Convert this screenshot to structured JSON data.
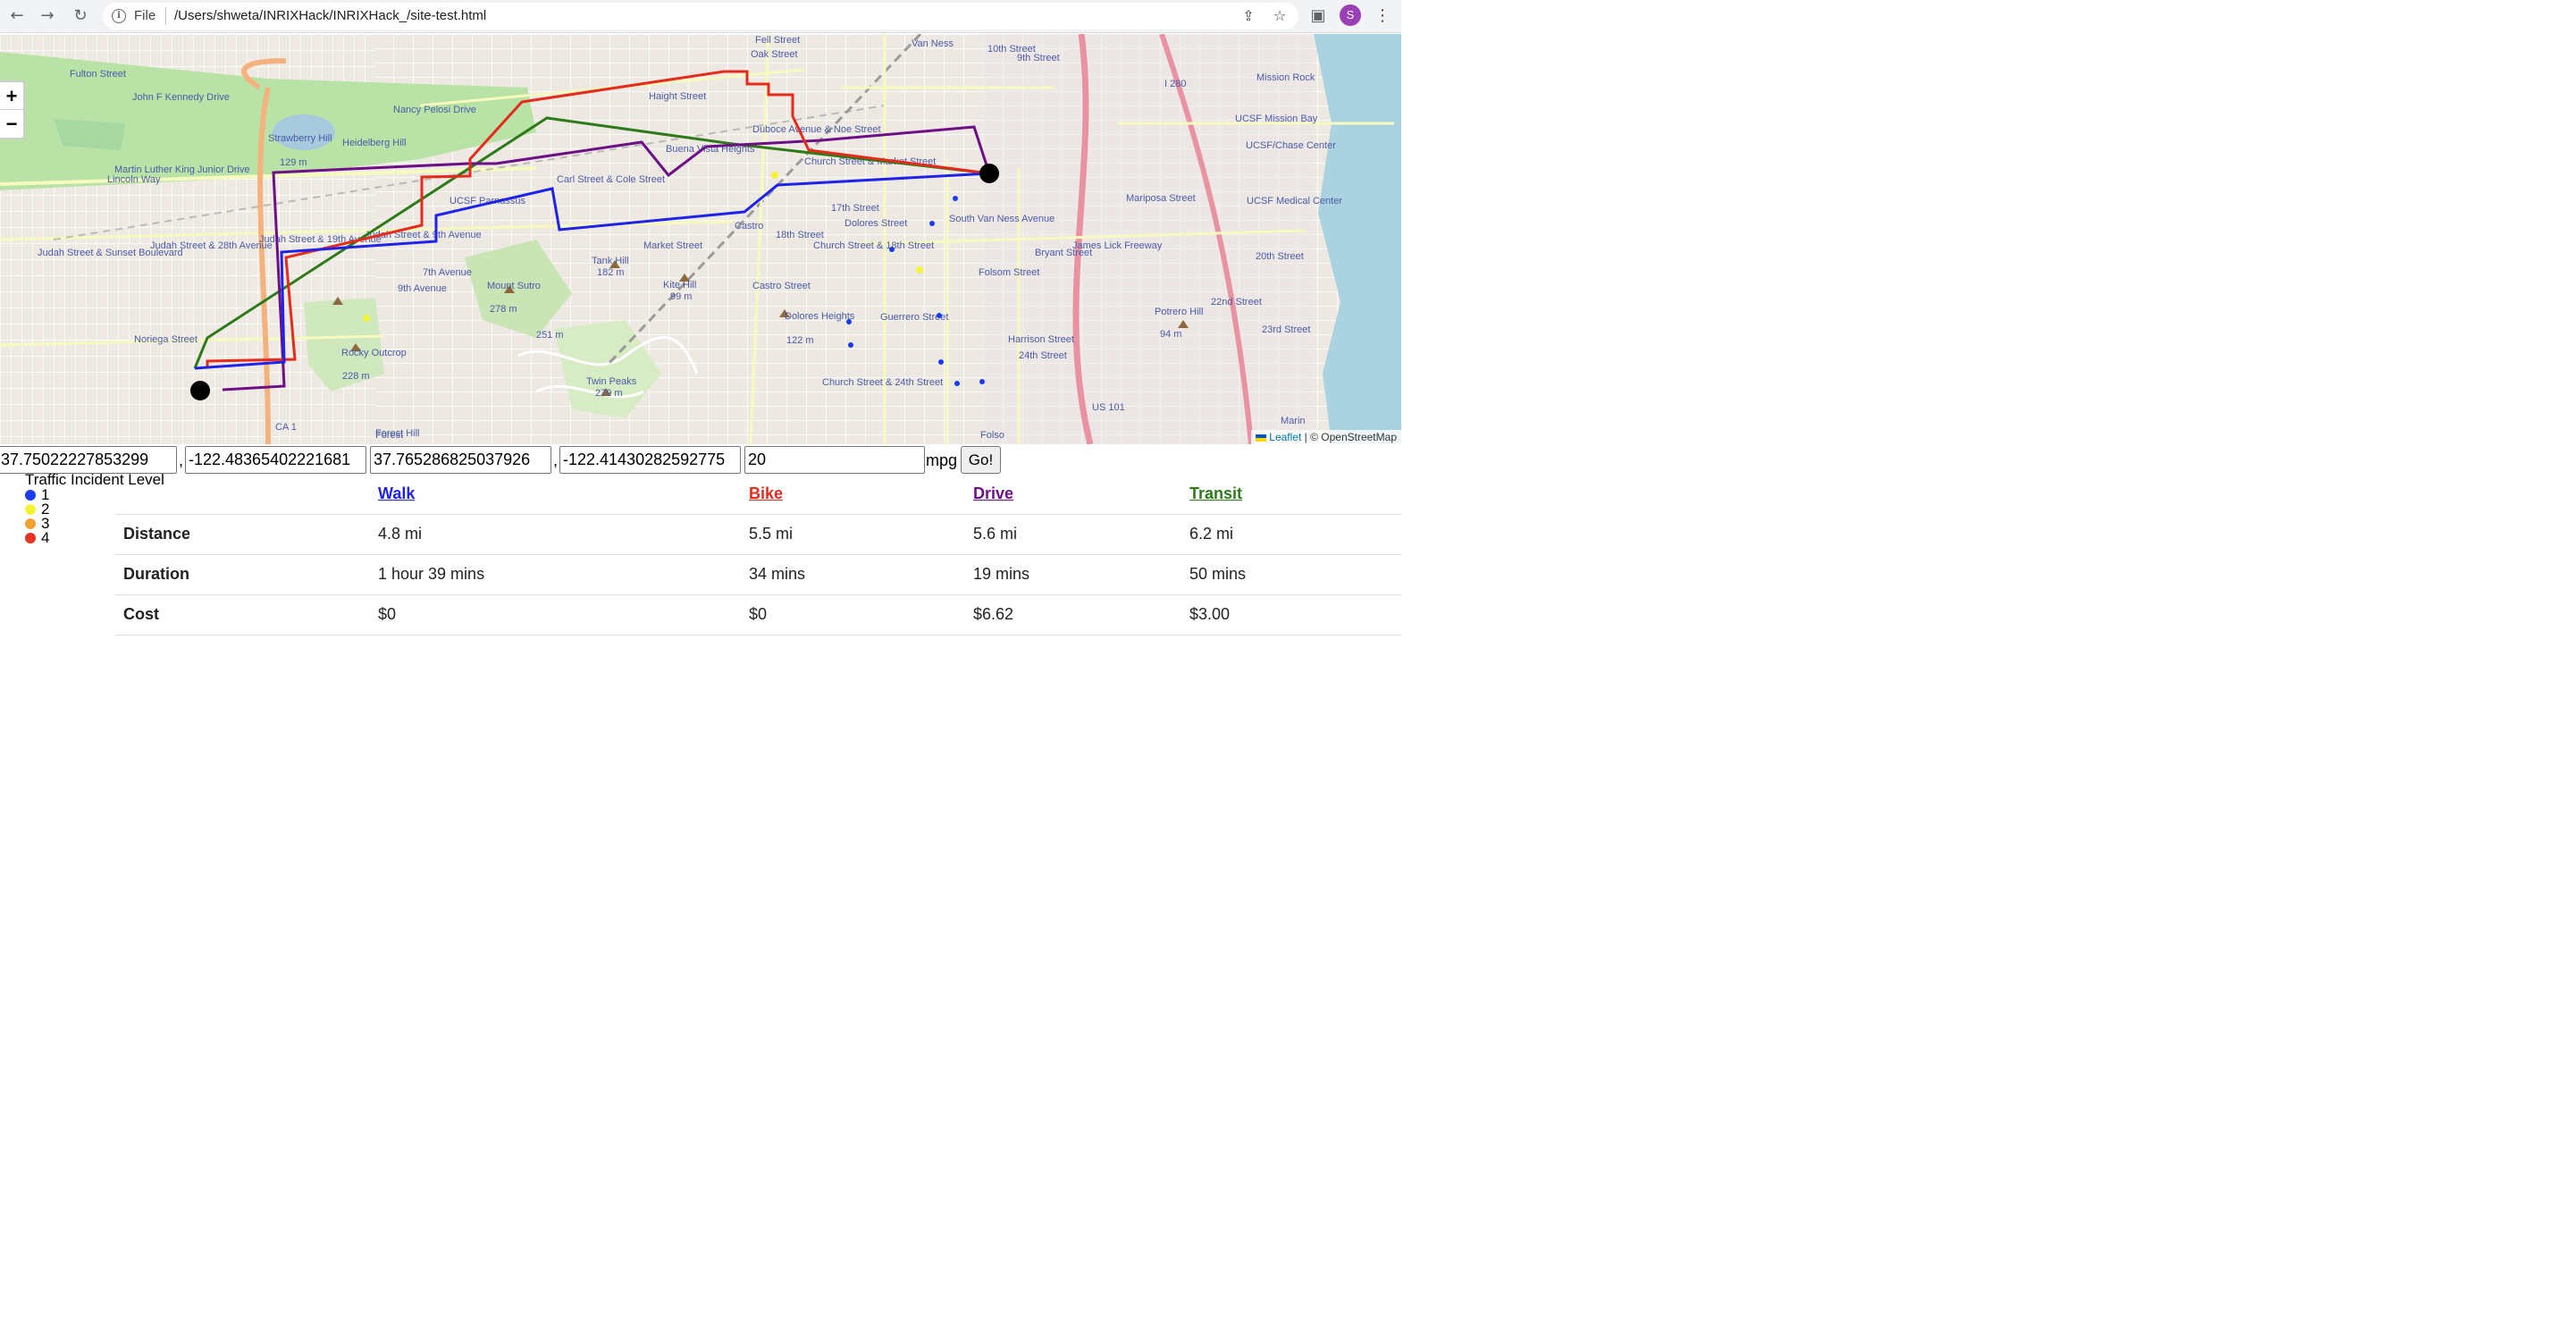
{
  "browser": {
    "file_label": "File",
    "url": "/Users/shweta/INRIXHack/INRIXHack_/site-test.html",
    "profile_initial": "S"
  },
  "map": {
    "zoom_in": "+",
    "zoom_out": "−",
    "attribution_leaflet": "Leaflet",
    "attribution_rest": " | © OpenStreetMap",
    "place_labels": [
      "Fulton Street",
      "Fell Street",
      "Oak Street",
      "Haight Street",
      "Van Ness",
      "John F Kennedy Drive",
      "Nancy Pelosi Drive",
      "Strawberry Hill",
      "129 m",
      "Heidelberg Hill",
      "Martin Luther King Junior Drive",
      "Lincoln Way",
      "Judah Street & Sunset Boulevard",
      "Judah Street & 28th Avenue",
      "Judah Street & 19th Avenue",
      "Judah Street & 9th Avenue",
      "UCSF Parnassus",
      "Carl Street & Cole Street",
      "Buena Vista Heights",
      "Duboce Avenue & Noe Street",
      "Church Street & Market Street",
      "17th Street",
      "18th Street",
      "Castro",
      "Church Street & 18th Street",
      "Tank Hill",
      "182 m",
      "Kite Hill",
      "99 m",
      "Mount Sutro",
      "278 m",
      "251 m",
      "Twin Peaks",
      "279 m",
      "Rocky Outcrop",
      "228 m",
      "Noriega Street",
      "Forest Hill",
      "Dolores Heights",
      "122 m",
      "Church Street & 24th Street",
      "Mariposa Street",
      "24th Street",
      "Potrero Hill",
      "94 m",
      "20th Street",
      "22nd Street",
      "23rd Street",
      "Mission Rock",
      "UCSF Mission Bay",
      "UCSF/Chase Center",
      "UCSF Medical Center",
      "I 280",
      "US 101",
      "CA 1",
      "Marin",
      "Market Street",
      "Folsom Street",
      "Harrison Street",
      "Bryant Street",
      "South Van Ness Avenue",
      "Guerrero Street",
      "Dolores Street",
      "Castro Street",
      "9th Avenue",
      "7th Avenue",
      "James Lick Freeway",
      "10th Street",
      "9th Street",
      "Forest",
      "Folso"
    ]
  },
  "form": {
    "start_lat": "37.75022227853299",
    "start_lng": "-122.48365402221681",
    "end_lat": "37.765286825037926",
    "end_lng": "-122.41430282592775",
    "mpg": "20",
    "comma": ",",
    "mpg_label": "mpg",
    "go_label": "Go!"
  },
  "legend": {
    "title": "Traffic Incident Level",
    "levels": [
      {
        "label": "1",
        "color": "#1a3cf0"
      },
      {
        "label": "2",
        "color": "#f5f23a"
      },
      {
        "label": "3",
        "color": "#f0a030"
      },
      {
        "label": "4",
        "color": "#e53222"
      }
    ]
  },
  "routes": {
    "colors": {
      "walk": "#1f22e8",
      "bike": "#e62b1c",
      "drive": "#6d0f87",
      "transit": "#2d7a19"
    },
    "headers": [
      "Walk",
      "Bike",
      "Drive",
      "Transit"
    ],
    "rows": [
      {
        "label": "Distance",
        "values": [
          "4.8 mi",
          "5.5 mi",
          "5.6 mi",
          "6.2 mi"
        ]
      },
      {
        "label": "Duration",
        "values": [
          "1 hour 39 mins",
          "34 mins",
          "19 mins",
          "50 mins"
        ]
      },
      {
        "label": "Cost",
        "values": [
          "$0",
          "$0",
          "$6.62",
          "$3.00"
        ]
      }
    ]
  }
}
